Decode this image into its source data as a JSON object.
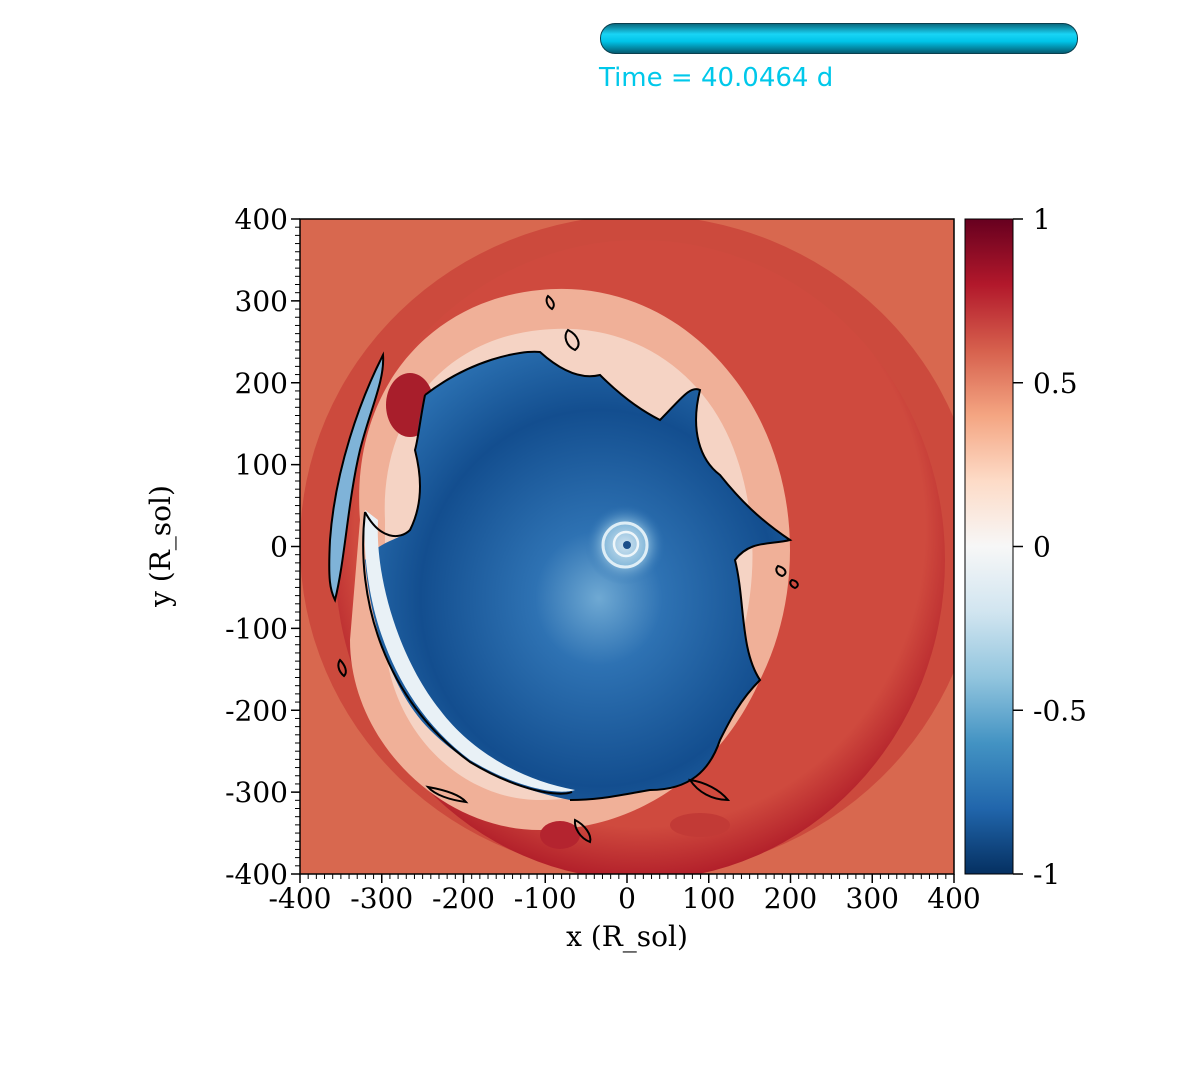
{
  "time_bar": {
    "label": "Time = 40.0464 d",
    "progress": 1.0,
    "color": "#00c8ea"
  },
  "plot": {
    "xlabel": "x (R_sol)",
    "ylabel": "y (R_sol)",
    "xlim": [
      -400,
      400
    ],
    "ylim": [
      -400,
      400
    ],
    "x_ticks": [
      "-400",
      "-300",
      "-200",
      "-100",
      "0",
      "100",
      "200",
      "300",
      "400"
    ],
    "y_ticks": [
      "400",
      "300",
      "200",
      "100",
      "0",
      "-100",
      "-200",
      "-300",
      "-400"
    ]
  },
  "colorbar": {
    "range": [
      -1,
      1
    ],
    "ticks": [
      "1",
      "0.5",
      "0",
      "-0.5",
      "-1"
    ],
    "colormap": "RdBu_r",
    "colors": [
      "#053061",
      "#2166ac",
      "#4393c3",
      "#92c5de",
      "#d1e5f0",
      "#f7f7f7",
      "#fddbc7",
      "#f4a582",
      "#d6604d",
      "#b2182b",
      "#67001f"
    ]
  },
  "colors": {
    "background_field": "#d7604d",
    "outer_field": "#b21f2a",
    "inner_field": "#16539a",
    "contour": "#000000"
  }
}
